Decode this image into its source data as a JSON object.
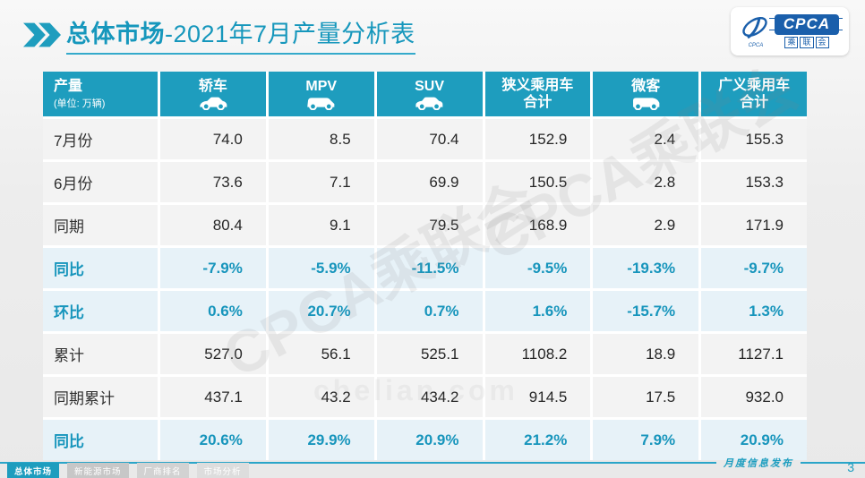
{
  "page": {
    "title_main": "总体市场",
    "title_rest": "-2021年7月产量分析表",
    "page_number": "3",
    "footer_note": "月度信息发布"
  },
  "logo": {
    "cpca": "CPCA",
    "sub1": "乘",
    "sub2": "联",
    "sub3": "会",
    "small_text": "CPCA"
  },
  "watermarks": {
    "wm1": "CPCA乘联会",
    "wm2": "CPCA乘联会",
    "wm3": "chelian.com"
  },
  "table": {
    "unit_label": "产量",
    "unit_sub": "(单位: 万辆)",
    "columns": [
      {
        "label": "轿车",
        "icon": "sedan-icon"
      },
      {
        "label": "MPV",
        "icon": "mpv-icon"
      },
      {
        "label": "SUV",
        "icon": "suv-icon"
      },
      {
        "label": "狭义乘用车",
        "label2": "合计"
      },
      {
        "label": "微客",
        "icon": "microvan-icon"
      },
      {
        "label": "广义乘用车",
        "label2": "合计"
      }
    ],
    "rows": [
      {
        "label": "7月份",
        "highlight": false,
        "values": [
          "74.0",
          "8.5",
          "70.4",
          "152.9",
          "2.4",
          "155.3"
        ]
      },
      {
        "label": "6月份",
        "highlight": false,
        "values": [
          "73.6",
          "7.1",
          "69.9",
          "150.5",
          "2.8",
          "153.3"
        ]
      },
      {
        "label": "同期",
        "highlight": false,
        "values": [
          "80.4",
          "9.1",
          "79.5",
          "168.9",
          "2.9",
          "171.9"
        ]
      },
      {
        "label": "同比",
        "highlight": true,
        "values": [
          "-7.9%",
          "-5.9%",
          "-11.5%",
          "-9.5%",
          "-19.3%",
          "-9.7%"
        ]
      },
      {
        "label": "环比",
        "highlight": true,
        "values": [
          "0.6%",
          "20.7%",
          "0.7%",
          "1.6%",
          "-15.7%",
          "1.3%"
        ]
      },
      {
        "label": "累计",
        "highlight": false,
        "values": [
          "527.0",
          "56.1",
          "525.1",
          "1108.2",
          "18.9",
          "1127.1"
        ]
      },
      {
        "label": "同期累计",
        "highlight": false,
        "values": [
          "437.1",
          "43.2",
          "434.2",
          "914.5",
          "17.5",
          "932.0"
        ]
      },
      {
        "label": "同比",
        "highlight": true,
        "values": [
          "20.6%",
          "29.9%",
          "20.9%",
          "21.2%",
          "7.9%",
          "20.9%"
        ]
      }
    ]
  },
  "tabs": [
    {
      "label": "总体市场",
      "active": true
    },
    {
      "label": "新能源市场",
      "active": false
    },
    {
      "label": "厂商排名",
      "active": false
    },
    {
      "label": "市场分析",
      "active": false
    }
  ],
  "colors": {
    "accent_teal": "#1e9dbe",
    "highlight_text": "#1795bc",
    "highlight_bg": "#e7f2f8",
    "row_bg": "#f3f3f3",
    "logo_blue": "#1a5fab"
  }
}
